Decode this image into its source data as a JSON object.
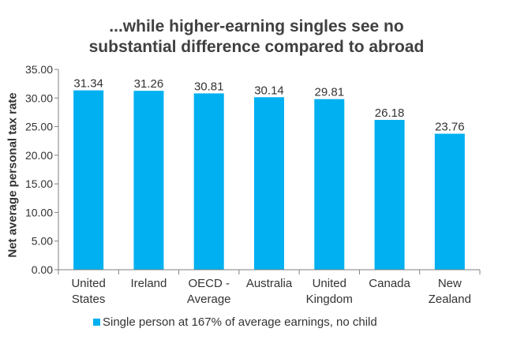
{
  "title_line1": "...while higher-earning singles see no",
  "title_line2": "substantial difference compared to abroad",
  "chart_data": {
    "type": "bar",
    "title": "...while higher-earning singles see no substantial difference compared to abroad",
    "xlabel": "",
    "ylabel": "Net average personal tax rate",
    "ylim": [
      0,
      35
    ],
    "ytick_step": 5,
    "ytick_labels": [
      "0.00",
      "5.00",
      "10.00",
      "15.00",
      "20.00",
      "25.00",
      "30.00",
      "35.00"
    ],
    "categories": [
      [
        "United",
        "States"
      ],
      [
        "Ireland"
      ],
      [
        "OECD -",
        "Average"
      ],
      [
        "Australia"
      ],
      [
        "United",
        "Kingdom"
      ],
      [
        "Canada"
      ],
      [
        "New",
        "Zealand"
      ]
    ],
    "series": [
      {
        "name": "Single person at 167% of average earnings, no child",
        "color": "#00B0F0",
        "values": [
          31.34,
          31.26,
          30.81,
          30.14,
          29.81,
          26.18,
          23.76
        ],
        "labels": [
          "31.34",
          "31.26",
          "30.81",
          "30.14",
          "29.81",
          "26.18",
          "23.76"
        ]
      }
    ],
    "grid": false,
    "legend": "bottom-center"
  }
}
